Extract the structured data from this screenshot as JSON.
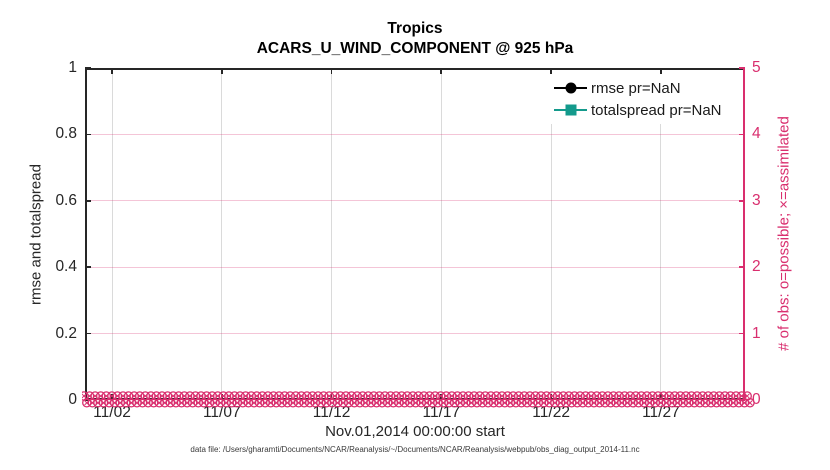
{
  "footer_note": "data file: /Users/gharamti/Documents/NCAR/Reanalysis/~/Documents/NCAR/Reanalysis/webpub/obs_diag_output_2014-11.nc",
  "colors": {
    "axis_left_black": "#262626",
    "obs_magenta": "#d92e6e",
    "rmse_black": "#000000",
    "totalspread_teal": "#149a8c",
    "grid_gray": "rgba(38,38,38,0.17)",
    "grid_pink": "rgba(217,46,110,0.28)"
  },
  "legend": {
    "items": [
      {
        "label": "rmse pr=NaN",
        "marker": "circle",
        "color": "#000000"
      },
      {
        "label": "totalspread pr=NaN",
        "marker": "square",
        "color": "#149a8c"
      }
    ]
  },
  "chart_data": {
    "type": "line",
    "title": "Tropics",
    "subtitle": "ACARS_U_WIND_COMPONENT @ 925 hPa",
    "xlabel": "Nov.01,2014 00:00:00 start",
    "ylabel_left": "rmse and totalspread",
    "ylabel_right": "# of obs: o=possible; ×=assimilated",
    "x_axis": {
      "tick_labels": [
        "11/02",
        "11/07",
        "11/12",
        "11/17",
        "11/22",
        "11/27"
      ],
      "tick_days": [
        2,
        7,
        12,
        17,
        22,
        27
      ],
      "lim_days": [
        0.77,
        30.83
      ],
      "grid": true
    },
    "y_left": {
      "tick_labels": [
        "0",
        "0.2",
        "0.4",
        "0.6",
        "0.8",
        "1"
      ],
      "ticks": [
        0,
        0.2,
        0.4,
        0.6,
        0.8,
        1
      ],
      "lim": [
        0,
        1
      ]
    },
    "y_right": {
      "tick_labels": [
        "0",
        "1",
        "2",
        "3",
        "4",
        "5"
      ],
      "ticks": [
        0,
        1,
        2,
        3,
        4,
        5
      ],
      "lim": [
        0,
        5
      ],
      "grid": true
    },
    "series": [
      {
        "name": "rmse",
        "pr": "NaN",
        "color": "#000000",
        "marker": "o",
        "values": [],
        "note": "all values NaN - no curve drawn"
      },
      {
        "name": "totalspread",
        "pr": "NaN",
        "color": "#149a8c",
        "marker": "s",
        "values": [],
        "note": "all values NaN - no curve drawn"
      },
      {
        "name": "# of obs possible",
        "marker": "o",
        "color": "#d92e6e",
        "y_value_all_times": 0,
        "n_times": 120,
        "x_start_day": 1,
        "x_end_day": 30.75
      },
      {
        "name": "# of obs assimilated",
        "marker": "x",
        "color": "#d92e6e",
        "y_value_all_times": 0,
        "n_times": 120,
        "x_start_day": 1,
        "x_end_day": 30.75
      }
    ],
    "legend_position": "top-right-inside",
    "grid": true
  }
}
